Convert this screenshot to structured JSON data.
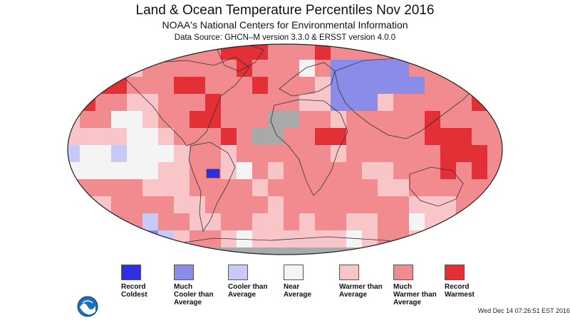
{
  "header": {
    "title": "Land & Ocean Temperature Percentiles Nov 2016",
    "subtitle": "NOAA's National Centers for Environmental Information",
    "source": "Data Source: GHCN–M version 3.3.0 & ERSST version 4.0.0"
  },
  "legend": [
    {
      "label": "Record\nColdest",
      "color": "#2f2fe0"
    },
    {
      "label": "Much\nCooler than\nAverage",
      "color": "#8b8be8"
    },
    {
      "label": "Cooler than\nAverage",
      "color": "#c9c9f5"
    },
    {
      "label": "Near\nAverage",
      "color": "#f4f4f4"
    },
    {
      "label": "Warmer than\nAverage",
      "color": "#f8c6c9"
    },
    {
      "label": "Much\nWarmer than\nAverage",
      "color": "#f28b90"
    },
    {
      "label": "Record\nWarmest",
      "color": "#e23036"
    }
  ],
  "colors": {
    "missing": "#a9a9a9",
    "border": "#333333"
  },
  "footer": {
    "timestamp": "Wed Dec 14 07:26:51 EST 2016"
  },
  "icons": {
    "logo": "noaa-logo"
  }
}
